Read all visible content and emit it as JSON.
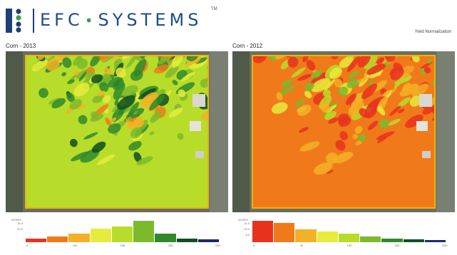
{
  "header": {
    "brand_left": "EFC",
    "brand_right": "SYSTEMS",
    "trademark": "TM",
    "report_type": "Yield Normalization"
  },
  "maps": [
    {
      "title": "Corn - 2013",
      "palette": "green",
      "legend": {
        "header": "ACRES",
        "y_ticks": [
          "16.4",
          "10.0"
        ],
        "x_ticks": [
          "0",
          "116",
          "158",
          "208",
          "250+"
        ],
        "bars": [
          {
            "value": 4,
            "color": "#e8321e"
          },
          {
            "value": 6,
            "color": "#f07a1a"
          },
          {
            "value": 9,
            "color": "#f4b026"
          },
          {
            "value": 14,
            "color": "#e6ec3b"
          },
          {
            "value": 16,
            "color": "#b8dc2a"
          },
          {
            "value": 22,
            "color": "#7cba2c"
          },
          {
            "value": 9,
            "color": "#2f8a2c"
          },
          {
            "value": 4,
            "color": "#0e4f1f"
          },
          {
            "value": 3,
            "color": "#1b2a6a"
          }
        ]
      }
    },
    {
      "title": "Corn - 2012",
      "palette": "red",
      "legend": {
        "header": "ACRES",
        "y_ticks": [
          "12.4",
          "10.0",
          "8.0"
        ],
        "x_ticks": [
          "0",
          "33",
          "120",
          "160",
          "200+"
        ],
        "bars": [
          {
            "value": 22,
            "color": "#e8321e"
          },
          {
            "value": 20,
            "color": "#f07a1a"
          },
          {
            "value": 13,
            "color": "#f4b026"
          },
          {
            "value": 11,
            "color": "#e6ec3b"
          },
          {
            "value": 9,
            "color": "#b8dc2a"
          },
          {
            "value": 6,
            "color": "#7cba2c"
          },
          {
            "value": 4,
            "color": "#2f8a2c"
          },
          {
            "value": 3,
            "color": "#0e4f1f"
          },
          {
            "value": 2,
            "color": "#1b2a6a"
          }
        ]
      }
    }
  ],
  "colors": {
    "brand_blue": "#1f4a8c",
    "brand_green": "#3aa142",
    "field_border": "#f0b400"
  }
}
